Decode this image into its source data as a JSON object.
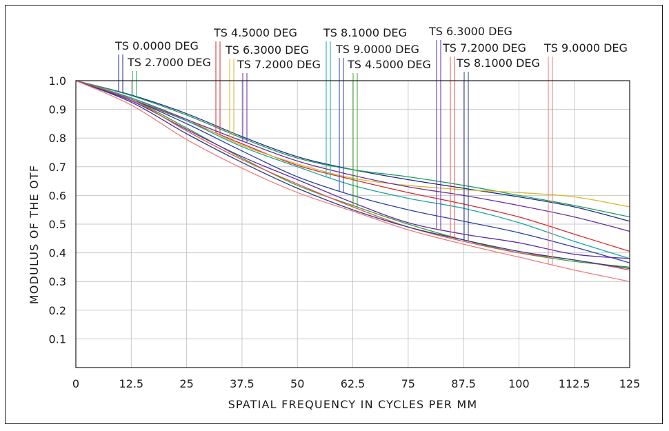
{
  "chart_data": {
    "type": "line",
    "xlabel": "SPATIAL FREQUENCY IN CYCLES PER MM",
    "ylabel": "MODULUS OF THE OTF",
    "xlim": [
      0,
      125
    ],
    "ylim": [
      0,
      1.0
    ],
    "grid": true,
    "x_ticks": [
      0,
      12.5,
      25,
      37.5,
      50,
      62.5,
      75,
      87.5,
      100,
      112.5,
      125
    ],
    "x_tick_labels": [
      "0",
      "12.5",
      "25",
      "37.5",
      "50",
      "62.5",
      "75",
      "87.5",
      "100",
      "112.5",
      "125"
    ],
    "y_ticks": [
      0.1,
      0.2,
      0.3,
      0.4,
      0.5,
      0.6,
      0.7,
      0.8,
      0.9,
      1.0
    ],
    "y_tick_labels": [
      "0.1",
      "0.2",
      "0.3",
      "0.4",
      "0.5",
      "0.6",
      "0.7",
      "0.8",
      "0.9",
      "1.0"
    ],
    "x": [
      0,
      12.5,
      25,
      37.5,
      50,
      62.5,
      75,
      87.5,
      100,
      112.5,
      125
    ],
    "series": [
      {
        "name": "TS 0.0000 DEG",
        "color": "#1f2a8a",
        "values": [
          1.0,
          0.95,
          0.885,
          0.805,
          0.735,
          0.69,
          0.655,
          0.625,
          0.595,
          0.56,
          0.51
        ]
      },
      {
        "name": "TS 2.7000 DEG",
        "color": "#1e9e5a",
        "values": [
          1.0,
          0.948,
          0.88,
          0.8,
          0.73,
          0.69,
          0.665,
          0.635,
          0.6,
          0.565,
          0.525
        ]
      },
      {
        "name": "TS 4.5000 DEG",
        "color": "#d42a2a",
        "values": [
          1.0,
          0.935,
          0.86,
          0.78,
          0.705,
          0.655,
          0.61,
          0.57,
          0.525,
          0.465,
          0.405
        ]
      },
      {
        "name": "TS 6.3000 DEG",
        "color": "#d7b62a",
        "values": [
          1.0,
          0.94,
          0.865,
          0.775,
          0.71,
          0.66,
          0.635,
          0.62,
          0.61,
          0.595,
          0.56
        ]
      },
      {
        "name": "TS 7.2000 DEG",
        "color": "#6a2a9e",
        "values": [
          1.0,
          0.94,
          0.865,
          0.79,
          0.72,
          0.67,
          0.63,
          0.6,
          0.565,
          0.525,
          0.475
        ]
      },
      {
        "name": "TS 8.1000 DEG",
        "color": "#16a3a0",
        "values": [
          1.0,
          0.94,
          0.86,
          0.77,
          0.7,
          0.635,
          0.59,
          0.555,
          0.505,
          0.44,
          0.38
        ]
      },
      {
        "name": "TS 9.0000 DEG",
        "color": "#2a3fa8",
        "values": [
          1.0,
          0.935,
          0.85,
          0.755,
          0.665,
          0.6,
          0.55,
          0.51,
          0.47,
          0.42,
          0.365
        ]
      },
      {
        "name": "TS 4.5000 DEG",
        "color": "#3b9e2a",
        "values": [
          1.0,
          0.935,
          0.835,
          0.73,
          0.635,
          0.565,
          0.5,
          0.445,
          0.4,
          0.37,
          0.35
        ]
      },
      {
        "name": "TS 6.3000 DEG",
        "color": "#5a2aa8",
        "values": [
          1.0,
          0.93,
          0.83,
          0.735,
          0.655,
          0.575,
          0.505,
          0.465,
          0.435,
          0.395,
          0.38
        ]
      },
      {
        "name": "TS 7.2000 DEG",
        "color": "#e0554f",
        "values": [
          1.0,
          0.935,
          0.825,
          0.725,
          0.64,
          0.56,
          0.49,
          0.44,
          0.4,
          0.375,
          0.34
        ]
      },
      {
        "name": "TS 8.1000 DEG",
        "color": "#2a3a8a",
        "values": [
          1.0,
          0.925,
          0.815,
          0.715,
          0.625,
          0.55,
          0.49,
          0.445,
          0.405,
          0.375,
          0.345
        ]
      },
      {
        "name": "TS 9.0000 DEG",
        "color": "#f07a7a",
        "values": [
          1.0,
          0.915,
          0.795,
          0.695,
          0.61,
          0.545,
          0.48,
          0.43,
          0.385,
          0.34,
          0.3
        ]
      }
    ],
    "field_labels": [
      {
        "text": "TS 0.0000 DEG",
        "series": 0
      },
      {
        "text": "TS 2.7000 DEG",
        "series": 1
      },
      {
        "text": "TS 4.5000 DEG",
        "series": 2
      },
      {
        "text": "TS 6.3000 DEG",
        "series": 3
      },
      {
        "text": "TS 7.2000 DEG",
        "series": 4
      },
      {
        "text": "TS 8.1000 DEG",
        "series": 5
      },
      {
        "text": "TS 9.0000 DEG",
        "series": 6
      },
      {
        "text": "TS 4.5000 DEG",
        "series": 7
      },
      {
        "text": "TS 6.3000 DEG",
        "series": 8
      },
      {
        "text": "TS 7.2000 DEG",
        "series": 9
      },
      {
        "text": "TS 8.1000 DEG",
        "series": 10
      },
      {
        "text": "TS 9.0000 DEG",
        "series": 11
      }
    ]
  }
}
